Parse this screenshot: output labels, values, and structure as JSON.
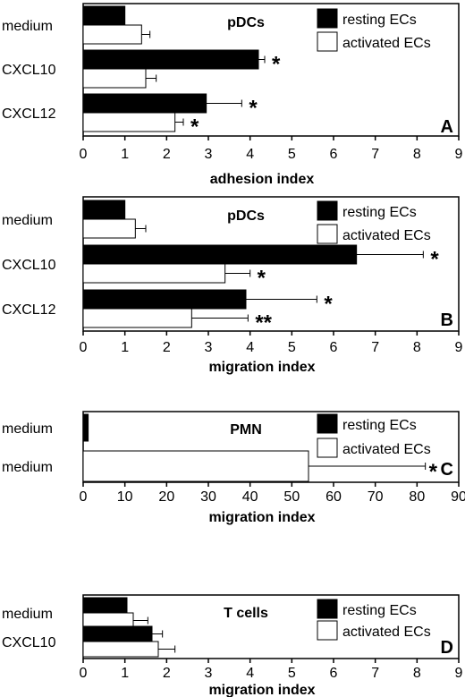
{
  "chart_data": [
    {
      "type": "bar",
      "orientation": "horizontal",
      "title": "pDCs",
      "panel_letter": "A",
      "xlabel": "adhesion index",
      "xlim": [
        0,
        9
      ],
      "ticks": [
        "0",
        "1",
        "2",
        "3",
        "4",
        "5",
        "6",
        "7",
        "8",
        "9"
      ],
      "categories": [
        "medium",
        "CXCL10",
        "CXCL12"
      ],
      "series": [
        {
          "name": "resting ECs",
          "color": "#000000",
          "values": [
            1.0,
            4.2,
            2.95
          ],
          "errors": [
            0,
            0.15,
            0.85
          ],
          "sig": [
            "",
            "*",
            "*"
          ]
        },
        {
          "name": "activated ECs",
          "color": "#ffffff",
          "values": [
            1.4,
            1.5,
            2.2
          ],
          "errors": [
            0.2,
            0.25,
            0.2
          ],
          "sig": [
            "",
            "",
            "*"
          ]
        }
      ],
      "legend_position": "top-right"
    },
    {
      "type": "bar",
      "orientation": "horizontal",
      "title": "pDCs",
      "panel_letter": "B",
      "xlabel": "migration index",
      "xlim": [
        0,
        9
      ],
      "ticks": [
        "0",
        "1",
        "2",
        "3",
        "4",
        "5",
        "6",
        "7",
        "8",
        "9"
      ],
      "categories": [
        "medium",
        "CXCL10",
        "CXCL12"
      ],
      "series": [
        {
          "name": "resting ECs",
          "color": "#000000",
          "values": [
            1.0,
            6.55,
            3.9
          ],
          "errors": [
            0,
            1.6,
            1.7
          ],
          "sig": [
            "",
            "*",
            "*"
          ]
        },
        {
          "name": "activated ECs",
          "color": "#ffffff",
          "values": [
            1.25,
            3.4,
            2.6
          ],
          "errors": [
            0.25,
            0.6,
            1.35
          ],
          "sig": [
            "",
            "*",
            "**"
          ]
        }
      ],
      "legend_position": "top-right"
    },
    {
      "type": "bar",
      "orientation": "horizontal",
      "title": "PMN",
      "panel_letter": "C",
      "xlabel": "migration index",
      "xlim": [
        0,
        90
      ],
      "ticks": [
        "0",
        "10",
        "20",
        "30",
        "40",
        "50",
        "60",
        "70",
        "80",
        "90"
      ],
      "categories": [
        "medium",
        "medium"
      ],
      "series": [
        {
          "name": "resting ECs",
          "color": "#000000",
          "values": [
            1.2,
            null
          ],
          "errors": [
            0,
            0
          ],
          "sig": [
            "",
            ""
          ]
        },
        {
          "name": "activated ECs",
          "color": "#ffffff",
          "values": [
            null,
            54
          ],
          "errors": [
            0,
            28
          ],
          "sig": [
            "",
            "*"
          ]
        }
      ],
      "legend_position": "top-right"
    },
    {
      "type": "bar",
      "orientation": "horizontal",
      "title": "T cells",
      "panel_letter": "D",
      "xlabel": "migration index",
      "xlim": [
        0,
        9
      ],
      "ticks": [
        "0",
        "1",
        "2",
        "3",
        "4",
        "5",
        "6",
        "7",
        "8",
        "9"
      ],
      "categories": [
        "medium",
        "CXCL10"
      ],
      "series": [
        {
          "name": "resting ECs",
          "color": "#000000",
          "values": [
            1.05,
            1.65
          ],
          "errors": [
            0,
            0.25
          ],
          "sig": [
            "",
            ""
          ]
        },
        {
          "name": "activated ECs",
          "color": "#ffffff",
          "values": [
            1.2,
            1.8
          ],
          "errors": [
            0.35,
            0.4
          ],
          "sig": [
            "",
            ""
          ]
        }
      ],
      "legend_position": "top-right"
    }
  ]
}
